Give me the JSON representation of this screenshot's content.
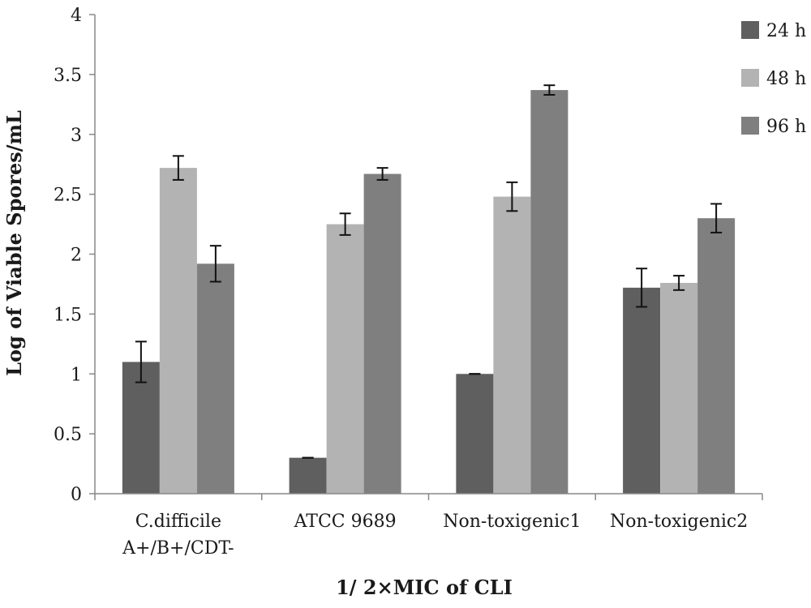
{
  "chart_data": {
    "type": "bar",
    "ylabel": "Log of Viable Spores/mL",
    "xlabel": "1/ 2×MIC of CLI",
    "ylim": [
      0,
      4
    ],
    "yticks": [
      "0",
      "0.5",
      "1",
      "1.5",
      "2",
      "2.5",
      "3",
      "3.5",
      "4"
    ],
    "categories": [
      [
        "C.difficile",
        "A+/B+/CDT-"
      ],
      [
        "ATCC 9689"
      ],
      [
        "Non-toxigenic1"
      ],
      [
        "Non-toxigenic2"
      ]
    ],
    "series": [
      {
        "name": "24 h",
        "color": "#5f5f5f",
        "values": [
          1.1,
          0.3,
          1.0,
          1.72
        ],
        "errors": [
          0.17,
          0.0,
          0.0,
          0.16
        ]
      },
      {
        "name": "48 h",
        "color": "#b3b3b3",
        "values": [
          2.72,
          2.25,
          2.48,
          1.76
        ],
        "errors": [
          0.1,
          0.09,
          0.12,
          0.06
        ]
      },
      {
        "name": "96 h",
        "color": "#7f7f7f",
        "values": [
          1.92,
          2.67,
          3.37,
          2.3
        ],
        "errors": [
          0.15,
          0.05,
          0.04,
          0.12
        ]
      }
    ],
    "legend_position": "top-right",
    "grid": false
  }
}
